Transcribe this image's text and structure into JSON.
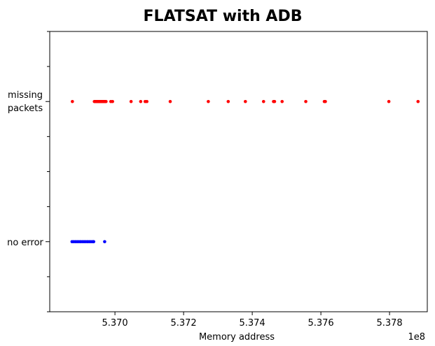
{
  "chart_data": {
    "type": "scatter",
    "title": "FLATSAT with ADB",
    "xlabel": "Memory address",
    "ylabel": "",
    "x_offset_label": "1e8",
    "xlim": [
      5.3681,
      5.3791
    ],
    "ylim": [
      -0.5,
      1.5
    ],
    "x_ticks": [
      5.37,
      5.372,
      5.374,
      5.376,
      5.378
    ],
    "x_tick_labels": [
      "5.370",
      "5.372",
      "5.374",
      "5.376",
      "5.378"
    ],
    "y_categories": [
      {
        "value": 0,
        "label": "no error"
      },
      {
        "value": 1,
        "label_lines": [
          "missing",
          "packets"
        ]
      }
    ],
    "y_minor_ticks": [
      -0.5,
      -0.25,
      0.25,
      0.5,
      0.75,
      1.25,
      1.5
    ],
    "grid": false,
    "legend": "none",
    "series": [
      {
        "color": "#ff0000",
        "y": 1,
        "x": [
          5.36876,
          5.3694,
          5.36942,
          5.36944,
          5.36946,
          5.36948,
          5.3695,
          5.36952,
          5.36954,
          5.36956,
          5.36958,
          5.3696,
          5.36962,
          5.36964,
          5.36966,
          5.36968,
          5.3697,
          5.36972,
          5.36974,
          5.36988,
          5.36993,
          5.37047,
          5.37075,
          5.37088,
          5.37093,
          5.37161,
          5.37272,
          5.3733,
          5.3738,
          5.37433,
          5.37462,
          5.37465,
          5.37487,
          5.37556,
          5.3761,
          5.37613,
          5.37798,
          5.37883
        ]
      },
      {
        "color": "#0000ff",
        "y": 0,
        "x": [
          5.36875,
          5.3688,
          5.36885,
          5.3689,
          5.36895,
          5.369,
          5.36905,
          5.3691,
          5.36915,
          5.3692,
          5.36925,
          5.3693,
          5.36935,
          5.36938,
          5.3697
        ]
      }
    ]
  }
}
